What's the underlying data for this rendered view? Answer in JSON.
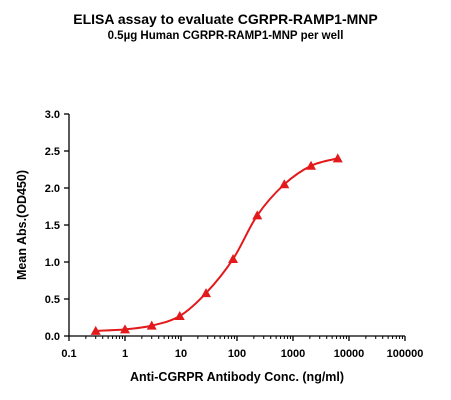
{
  "chart_data": {
    "type": "line",
    "title": "ELISA assay to evaluate CGRPR-RAMP1-MNP",
    "subtitle": "0.5µg Human CGRPR-RAMP1-MNP per well",
    "xlabel": "Anti-CGRPR Antibody Conc. (ng/ml)",
    "ylabel": "Mean Abs.(OD450)",
    "xscale": "log",
    "xlim": [
      0.1,
      100000
    ],
    "ylim": [
      0,
      3.0
    ],
    "xticks": [
      0.1,
      1,
      10,
      100,
      1000,
      10000,
      100000
    ],
    "xtick_labels": [
      "0.1",
      "1",
      "10",
      "100",
      "1000",
      "10000",
      "100000"
    ],
    "yticks": [
      0,
      0.5,
      1.0,
      1.5,
      2.0,
      2.5,
      3.0
    ],
    "ytick_labels": [
      "0.0",
      "0.5",
      "1.0",
      "1.5",
      "2.0",
      "2.5",
      "3.0"
    ],
    "grid": false,
    "legend": "none",
    "series": [
      {
        "marker": "triangle",
        "color": "#e31a1c",
        "x": [
          0.3,
          1,
          3,
          9.5,
          28,
          85,
          230,
          700,
          2100,
          6300
        ],
        "y": [
          0.07,
          0.09,
          0.14,
          0.27,
          0.58,
          1.04,
          1.63,
          2.05,
          2.3,
          2.4
        ]
      }
    ]
  }
}
